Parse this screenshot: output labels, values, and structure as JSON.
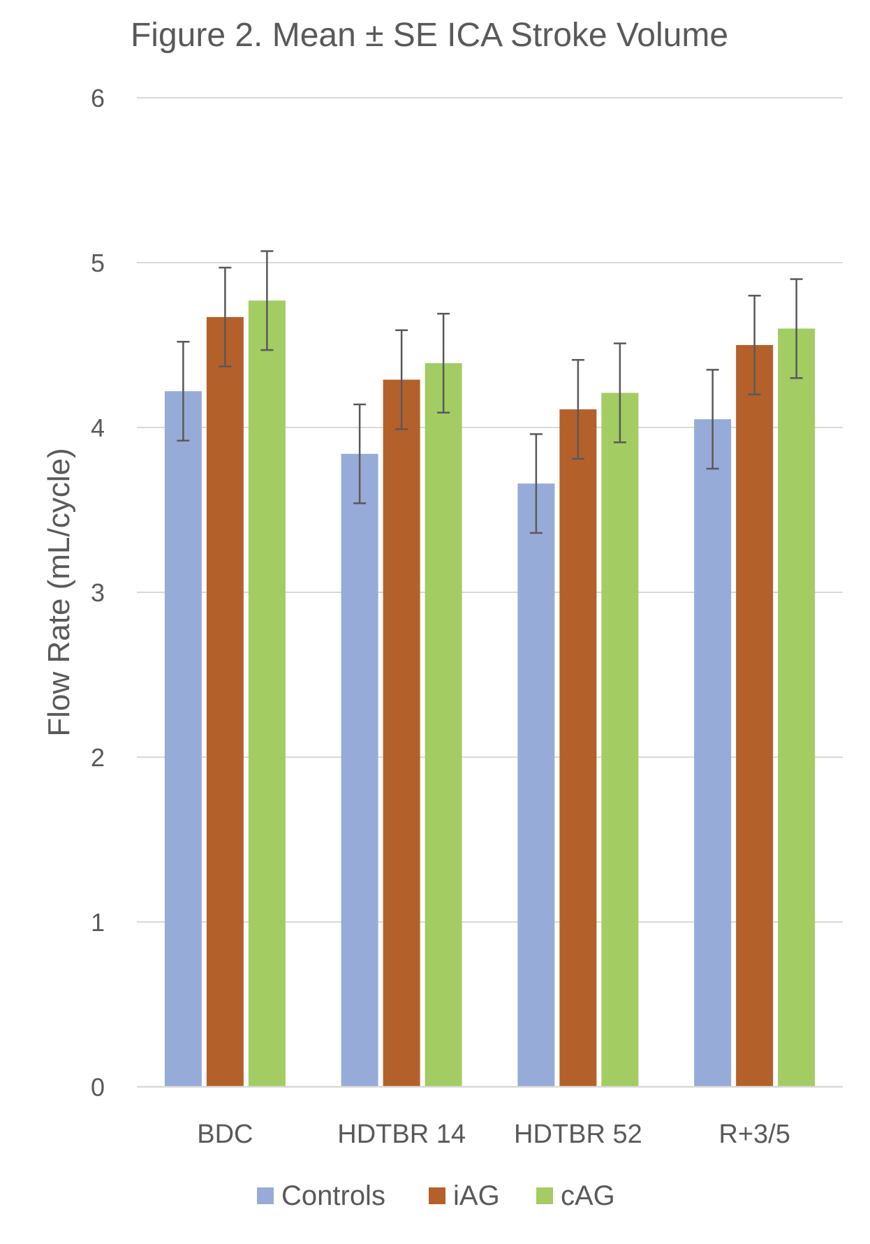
{
  "chart_data": {
    "type": "bar",
    "title": "Figure 2. Mean ± SE ICA Stroke Volume",
    "xlabel": "",
    "ylabel": "Flow Rate (mL/cycle)",
    "ylim": [
      0,
      6
    ],
    "yticks": [
      "0",
      "1",
      "2",
      "3",
      "4",
      "5",
      "6"
    ],
    "grid": true,
    "legend_position": "bottom",
    "categories": [
      "BDC",
      "HDTBR 14",
      "HDTBR 52",
      "R+3/5"
    ],
    "series": [
      {
        "name": "Controls",
        "color": "#97abd9",
        "values": [
          4.22,
          3.84,
          3.66,
          4.05
        ],
        "errors": [
          0.3,
          0.3,
          0.3,
          0.3
        ]
      },
      {
        "name": "iAG",
        "color": "#b4602a",
        "values": [
          4.67,
          4.29,
          4.11,
          4.5
        ],
        "errors": [
          0.3,
          0.3,
          0.3,
          0.3
        ]
      },
      {
        "name": "cAG",
        "color": "#a3cc63",
        "values": [
          4.77,
          4.39,
          4.21,
          4.6
        ],
        "errors": [
          0.3,
          0.3,
          0.3,
          0.3
        ]
      }
    ]
  }
}
